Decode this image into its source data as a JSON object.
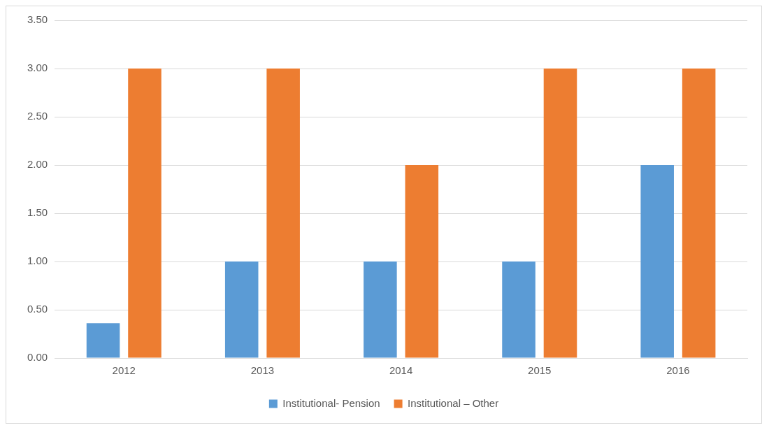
{
  "chart_data": {
    "type": "bar",
    "categories": [
      "2012",
      "2013",
      "2014",
      "2015",
      "2016"
    ],
    "series": [
      {
        "name": "Institutional- Pension",
        "color": "#5b9bd5",
        "values": [
          0.36,
          1,
          1,
          1,
          2
        ]
      },
      {
        "name": "Institutional – Other",
        "color": "#ed7d31",
        "values": [
          3,
          3,
          2,
          3,
          3
        ]
      }
    ],
    "ylim": [
      0,
      3.5
    ],
    "yticks": [
      {
        "value": 0,
        "label": "0.00"
      },
      {
        "value": 0.5,
        "label": "0.50"
      },
      {
        "value": 1,
        "label": "1.00"
      },
      {
        "value": 1.5,
        "label": "1.50"
      },
      {
        "value": 2,
        "label": "2.00"
      },
      {
        "value": 2.5,
        "label": "2.50"
      },
      {
        "value": 3,
        "label": "3.00"
      },
      {
        "value": 3.5,
        "label": "3.50"
      }
    ],
    "grid": "y",
    "legend": "bottom"
  }
}
